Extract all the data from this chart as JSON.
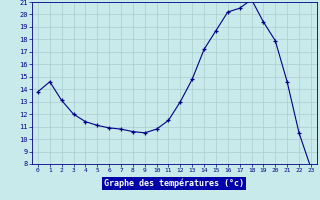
{
  "hours": [
    0,
    1,
    2,
    3,
    4,
    5,
    6,
    7,
    8,
    9,
    10,
    11,
    12,
    13,
    14,
    15,
    16,
    17,
    18,
    19,
    20,
    21,
    22,
    23
  ],
  "temps": [
    13.8,
    14.6,
    13.1,
    12.0,
    11.4,
    11.1,
    10.9,
    10.8,
    10.6,
    10.5,
    10.8,
    11.5,
    13.0,
    14.8,
    17.2,
    18.7,
    20.2,
    20.5,
    21.2,
    19.4,
    17.9,
    14.6,
    10.5,
    7.7
  ],
  "ylim": [
    8,
    21
  ],
  "yticks": [
    8,
    9,
    10,
    11,
    12,
    13,
    14,
    15,
    16,
    17,
    18,
    19,
    20,
    21
  ],
  "xticks": [
    0,
    1,
    2,
    3,
    4,
    5,
    6,
    7,
    8,
    9,
    10,
    11,
    12,
    13,
    14,
    15,
    16,
    17,
    18,
    19,
    20,
    21,
    22,
    23
  ],
  "xlabel": "Graphe des températures (°c)",
  "line_color": "#00008b",
  "marker": "+",
  "bg_color": "#c8eaea",
  "grid_color": "#aacccc",
  "xlabel_bg": "#0000aa",
  "xlabel_fg": "#ffffff"
}
